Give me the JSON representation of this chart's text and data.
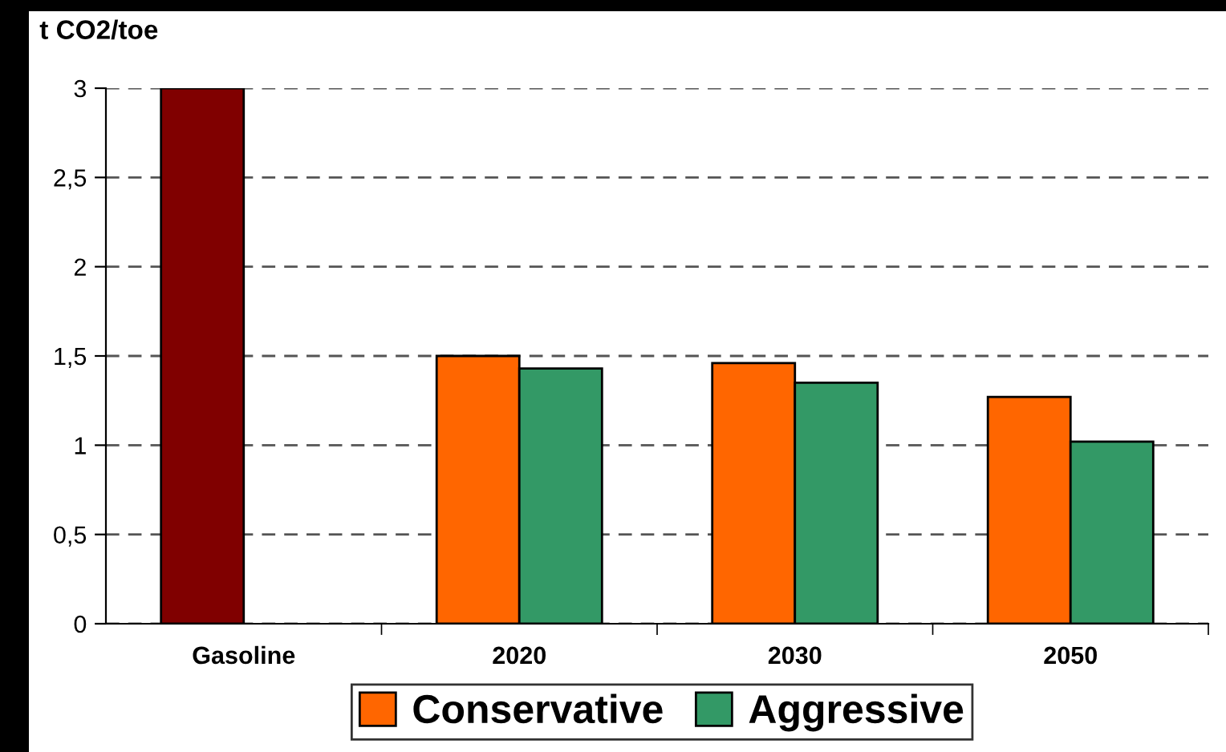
{
  "chart_data": {
    "type": "bar",
    "ylabel": "t CO2/toe",
    "categories": [
      "Gasoline",
      "2020",
      "2030",
      "2050"
    ],
    "series": [
      {
        "name": "Conservative",
        "color": "#ff6600",
        "colors": [
          "#800000",
          "#ff6600",
          "#ff6600",
          "#ff6600"
        ],
        "values": [
          3,
          1.5,
          1.46,
          1.27
        ]
      },
      {
        "name": "Aggressive",
        "color": "#339966",
        "values": [
          null,
          1.43,
          1.35,
          1.02
        ]
      }
    ],
    "ylim": [
      0,
      3
    ],
    "yticks": [
      {
        "value": 0,
        "label": "0"
      },
      {
        "value": 0.5,
        "label": "0,5"
      },
      {
        "value": 1,
        "label": "1"
      },
      {
        "value": 1.5,
        "label": "1,5"
      },
      {
        "value": 2,
        "label": "2"
      },
      {
        "value": 2.5,
        "label": "2,5"
      },
      {
        "value": 3,
        "label": "3"
      }
    ],
    "grid": "y",
    "legend": "bottom"
  }
}
